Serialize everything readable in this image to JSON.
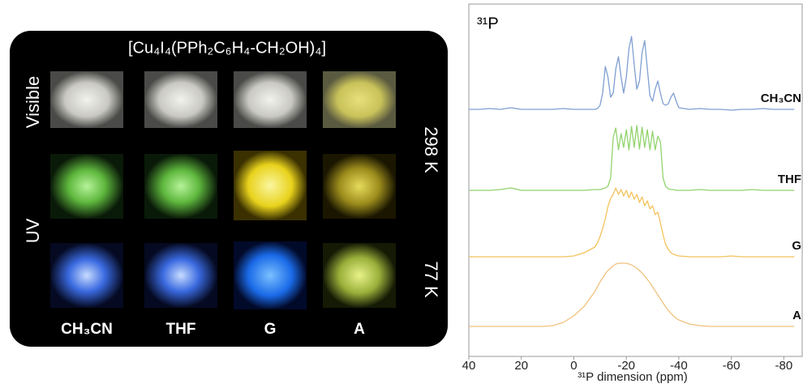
{
  "photo_panel": {
    "title": "[Cu₄I₄(PPh₂C₆H₄-CH₂OH)₄]",
    "row_labels": [
      "Visible",
      "UV"
    ],
    "temperature_labels": [
      "298 K",
      "77 K"
    ],
    "column_labels": [
      "CH₃CN",
      "THF",
      "G",
      "A"
    ]
  },
  "chart_data": {
    "type": "line",
    "title": "³¹P",
    "x_label": "³¹P dimension (ppm)",
    "xlim": [
      40,
      -87
    ],
    "ylim": [
      0,
      435
    ],
    "xticks": [
      40,
      20,
      0,
      -20,
      -40,
      -60,
      -80
    ],
    "x": [
      40,
      36,
      32,
      28,
      24,
      20,
      16,
      12,
      8,
      4,
      0,
      -4,
      -8,
      -9,
      -10,
      -11,
      -12,
      -13,
      -14,
      -15,
      -16,
      -17,
      -18,
      -19,
      -20,
      -21,
      -22,
      -23,
      -24,
      -25,
      -26,
      -27,
      -28,
      -29,
      -30,
      -31,
      -32,
      -33,
      -34,
      -35,
      -36,
      -37,
      -38,
      -39,
      -40,
      -44,
      -48,
      -52,
      -56,
      -60,
      -64,
      -68,
      -72,
      -76,
      -80,
      -84
    ],
    "series": [
      {
        "name": "CH₃CN",
        "color": "#7f9fd2",
        "values": [
          305,
          305,
          306,
          305,
          307,
          305,
          305,
          305,
          305,
          306,
          305,
          305,
          305,
          306,
          310,
          325,
          358,
          345,
          320,
          325,
          355,
          370,
          345,
          325,
          345,
          380,
          395,
          360,
          330,
          340,
          375,
          390,
          355,
          322,
          315,
          330,
          340,
          325,
          312,
          310,
          312,
          320,
          325,
          315,
          307,
          305,
          306,
          305,
          305,
          304,
          305,
          305,
          306,
          305,
          305,
          305
        ]
      },
      {
        "name": "THF",
        "color": "#92d36e",
        "values": [
          205,
          205,
          205,
          206,
          208,
          205,
          205,
          205,
          205,
          205,
          205,
          205,
          206,
          206,
          206,
          207,
          208,
          210,
          220,
          270,
          282,
          255,
          275,
          258,
          280,
          255,
          284,
          258,
          285,
          256,
          283,
          258,
          280,
          255,
          278,
          255,
          272,
          265,
          220,
          210,
          207,
          206,
          206,
          205,
          205,
          205,
          206,
          205,
          205,
          205,
          205,
          206,
          205,
          205,
          205,
          205
        ]
      },
      {
        "name": "G",
        "color": "#f4c25c",
        "values": [
          123,
          123,
          123,
          123,
          123,
          123,
          123,
          123,
          123,
          123,
          124,
          128,
          135,
          140,
          148,
          158,
          170,
          185,
          195,
          200,
          208,
          200,
          206,
          198,
          205,
          196,
          203,
          194,
          200,
          190,
          197,
          186,
          192,
          182,
          186,
          175,
          178,
          165,
          150,
          138,
          132,
          128,
          126,
          125,
          124,
          123,
          123,
          123,
          123,
          124,
          123,
          123,
          123,
          123,
          123,
          123
        ]
      },
      {
        "name": "A",
        "color": "#efc27e",
        "values": [
          37,
          37,
          37,
          37,
          37,
          37,
          37,
          37,
          38,
          42,
          50,
          62,
          80,
          86,
          92,
          97,
          102,
          106,
          109,
          112,
          114,
          115,
          115,
          115,
          115,
          114,
          113,
          111,
          109,
          106,
          103,
          99,
          95,
          91,
          86,
          81,
          76,
          71,
          66,
          61,
          57,
          53,
          50,
          47,
          45,
          40,
          38,
          37,
          37,
          37,
          37,
          37,
          37,
          37,
          37,
          37
        ]
      }
    ]
  }
}
